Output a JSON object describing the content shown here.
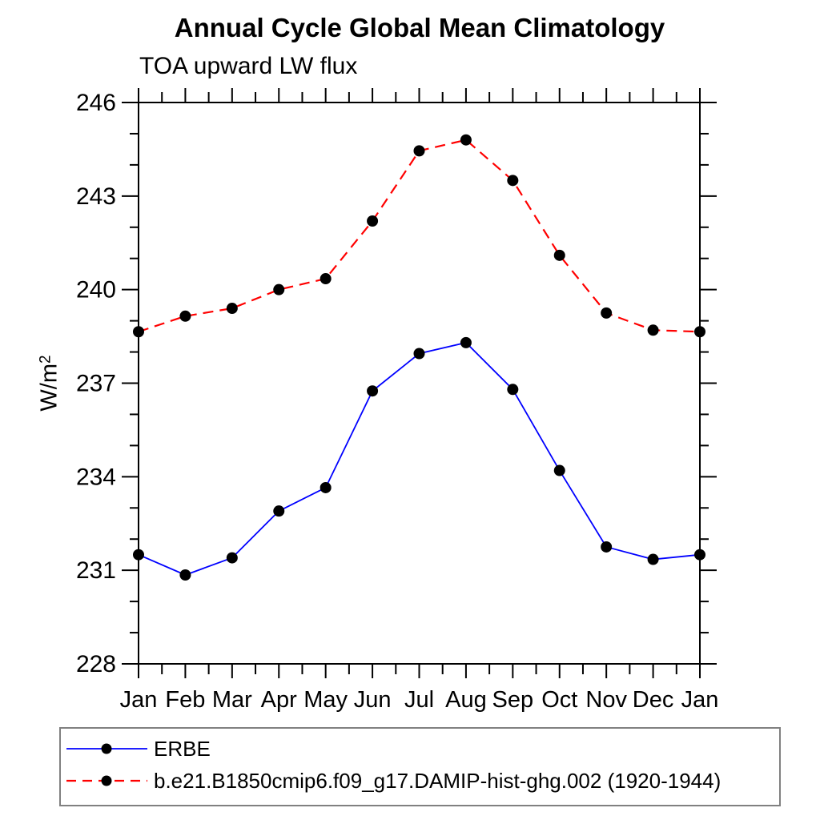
{
  "page": {
    "background": "#ffffff"
  },
  "chart_data": {
    "type": "line",
    "title": "Annual Cycle Global Mean Climatology",
    "subtitle": "TOA upward LW flux",
    "ylabel_base": "W/m",
    "ylabel_exponent": "2",
    "x_categories": [
      "Jan",
      "Feb",
      "Mar",
      "Apr",
      "May",
      "Jun",
      "Jul",
      "Aug",
      "Sep",
      "Oct",
      "Nov",
      "Dec",
      "Jan"
    ],
    "x_minor_ticks_between_months": 1,
    "ylim": [
      228,
      246
    ],
    "ytick_major_step": 3,
    "ytick_minor_step": 1,
    "grid": false,
    "axis_color": "#000000",
    "legend_position": "bottom-left",
    "legend_border_color": "#808080",
    "series": [
      {
        "name": "ERBE",
        "color": "#0000ff",
        "line_style": "solid",
        "line_width": 1.8,
        "marker": "filled-circle",
        "marker_color": "#000000",
        "values": [
          231.5,
          230.85,
          231.4,
          232.9,
          233.65,
          236.75,
          237.95,
          238.3,
          236.8,
          234.2,
          231.75,
          231.35,
          231.5
        ]
      },
      {
        "name": "b.e21.B1850cmip6.f09_g17.DAMIP-hist-ghg.002 (1920-1944)",
        "color": "#ff0000",
        "line_style": "dashed",
        "line_width": 2.2,
        "marker": "filled-circle",
        "marker_color": "#000000",
        "values": [
          238.65,
          239.15,
          239.4,
          240.0,
          240.35,
          242.2,
          244.45,
          244.8,
          243.5,
          241.1,
          239.25,
          238.7,
          238.65
        ]
      }
    ]
  }
}
